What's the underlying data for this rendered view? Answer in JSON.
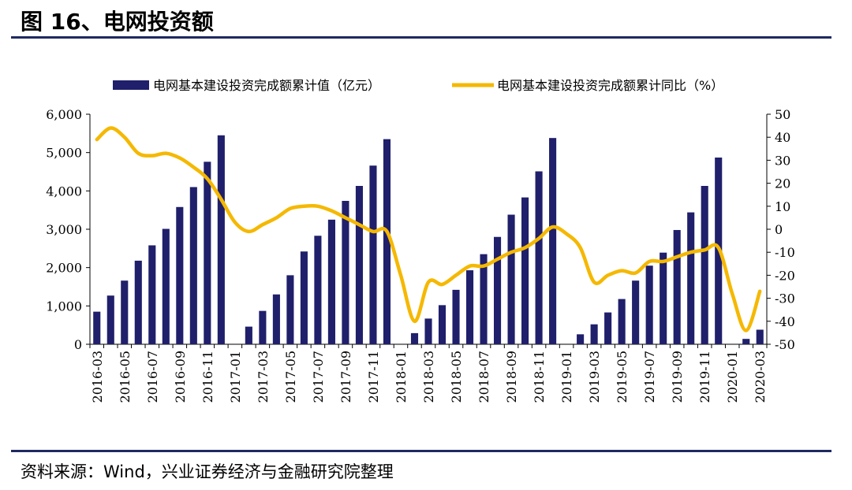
{
  "header": {
    "title": "图 16、电网投资额"
  },
  "footer": {
    "source": "资料来源：Wind，兴业证券经济与金融研究院整理"
  },
  "colors": {
    "bar": "#1f1f6b",
    "line": "#f5b800",
    "rule": "#1f2a60"
  },
  "chart_data": {
    "type": "bar+line",
    "categories": [
      "2016-03",
      "2016-04",
      "2016-05",
      "2016-06",
      "2016-07",
      "2016-08",
      "2016-09",
      "2016-10",
      "2016-11",
      "2016-12",
      "2017-01",
      "2017-02",
      "2017-03",
      "2017-04",
      "2017-05",
      "2017-06",
      "2017-07",
      "2017-08",
      "2017-09",
      "2017-10",
      "2017-11",
      "2017-12",
      "2018-01",
      "2018-02",
      "2018-03",
      "2018-04",
      "2018-05",
      "2018-06",
      "2018-07",
      "2018-08",
      "2018-09",
      "2018-10",
      "2018-11",
      "2018-12",
      "2019-01",
      "2019-02",
      "2019-03",
      "2019-04",
      "2019-05",
      "2019-06",
      "2019-07",
      "2019-08",
      "2019-09",
      "2019-10",
      "2019-11",
      "2019-12",
      "2020-01",
      "2020-02",
      "2020-03"
    ],
    "x_tick_labels": [
      "2016-03",
      "2016-05",
      "2016-07",
      "2016-09",
      "2016-11",
      "2017-01",
      "2017-03",
      "2017-05",
      "2017-07",
      "2017-09",
      "2017-11",
      "2018-01",
      "2018-03",
      "2018-05",
      "2018-07",
      "2018-09",
      "2018-11",
      "2019-01",
      "2019-03",
      "2019-05",
      "2019-07",
      "2019-09",
      "2019-11",
      "2020-01",
      "2020-03"
    ],
    "series": [
      {
        "name": "电网基本建设投资完成额累计值（亿元）",
        "type": "bar",
        "axis": "left",
        "values": [
          850,
          1270,
          1660,
          2180,
          2580,
          3010,
          3580,
          4100,
          4760,
          5450,
          null,
          460,
          870,
          1300,
          1800,
          2420,
          2830,
          3250,
          3740,
          4130,
          4660,
          5350,
          null,
          290,
          670,
          1020,
          1420,
          1930,
          2350,
          2800,
          3380,
          3830,
          4510,
          5380,
          null,
          260,
          520,
          830,
          1180,
          1660,
          2050,
          2390,
          2980,
          3440,
          4130,
          4870,
          null,
          140,
          380
        ]
      },
      {
        "name": "电网基本建设投资完成额累计同比（%）",
        "type": "line",
        "axis": "right",
        "values": [
          39,
          44,
          40,
          33,
          32,
          33,
          31,
          27,
          22,
          13,
          3,
          -1,
          2,
          5,
          9,
          10,
          10,
          8,
          5,
          2,
          -1,
          -1,
          -20,
          -40,
          -23,
          -24,
          -20,
          -16,
          -16,
          -13,
          -10,
          -8,
          -4,
          1,
          -2,
          -8,
          -23,
          -20,
          -18,
          -19,
          -14,
          -14,
          -12,
          -10,
          -9,
          -8,
          -28,
          -44,
          -27
        ]
      }
    ],
    "y_left": {
      "min": 0,
      "max": 6000,
      "ticks": [
        "0",
        "1,000",
        "2,000",
        "3,000",
        "4,000",
        "5,000",
        "6,000"
      ]
    },
    "y_right": {
      "min": -50,
      "max": 50,
      "ticks": [
        "-50",
        "-40",
        "-30",
        "-20",
        "-10",
        "0",
        "10",
        "20",
        "30",
        "40",
        "50"
      ]
    },
    "legend_position": "top",
    "grid": false
  }
}
